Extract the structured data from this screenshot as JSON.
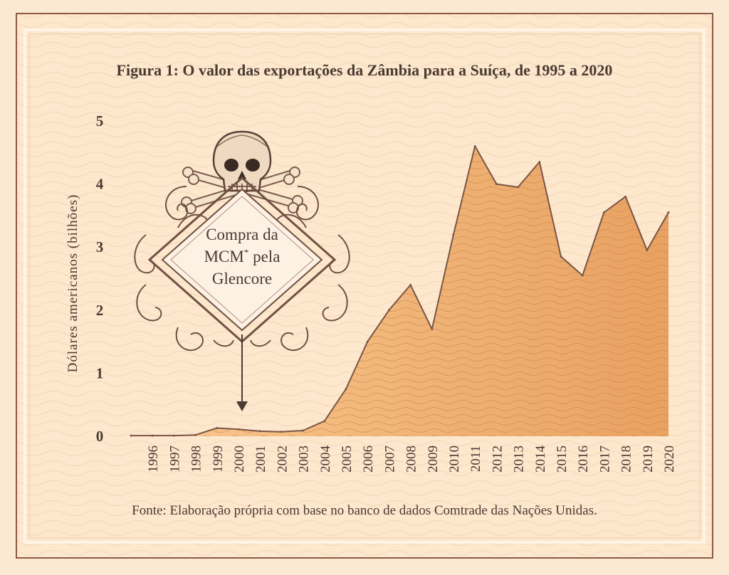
{
  "colors": {
    "background": "#fbe9d3",
    "panel": "#fde7cd",
    "frame": "#8d5a45",
    "frame_light": "#fff4e6",
    "ink": "#4a3a33",
    "area_light": "#f9c98f",
    "area_dark": "#e8a161",
    "line": "#7a5646",
    "ornament": "#7b5b4c"
  },
  "chart_data": {
    "type": "area",
    "title": "Figura 1: O valor das exportações da Zâmbia para a Suíça, de 1995 a 2020",
    "ylabel": "Dólares americanos (bilhões)",
    "xlabel": "",
    "yticks": [
      "0",
      "1",
      "2",
      "3",
      "4",
      "5"
    ],
    "ylim": [
      0,
      5
    ],
    "x": [
      1995,
      1996,
      1997,
      1998,
      1999,
      2000,
      2001,
      2002,
      2003,
      2004,
      2005,
      2006,
      2007,
      2008,
      2009,
      2010,
      2011,
      2012,
      2013,
      2014,
      2015,
      2016,
      2017,
      2018,
      2019,
      2020
    ],
    "xticks": [
      "1996",
      "1997",
      "1998",
      "1999",
      "2000",
      "2001",
      "2002",
      "2003",
      "2004",
      "2005",
      "2006",
      "2007",
      "2008",
      "2009",
      "2010",
      "2011",
      "2012",
      "2013",
      "2014",
      "2015",
      "2016",
      "2017",
      "2018",
      "2019",
      "2020"
    ],
    "values": [
      0.01,
      0.01,
      0.01,
      0.02,
      0.13,
      0.11,
      0.08,
      0.07,
      0.09,
      0.24,
      0.75,
      1.5,
      2.0,
      2.4,
      1.7,
      3.2,
      4.6,
      4.0,
      3.95,
      4.35,
      2.85,
      2.55,
      3.55,
      3.8,
      2.95,
      3.55
    ],
    "grid": false,
    "annotation": {
      "lines": [
        "Compra da",
        "MCM* pela",
        "Glencore"
      ],
      "footnote_mark": "*",
      "points_to": 2000
    },
    "source": "Fonte: Elaboração própria com base no banco de dados Comtrade das Nações Unidas."
  }
}
